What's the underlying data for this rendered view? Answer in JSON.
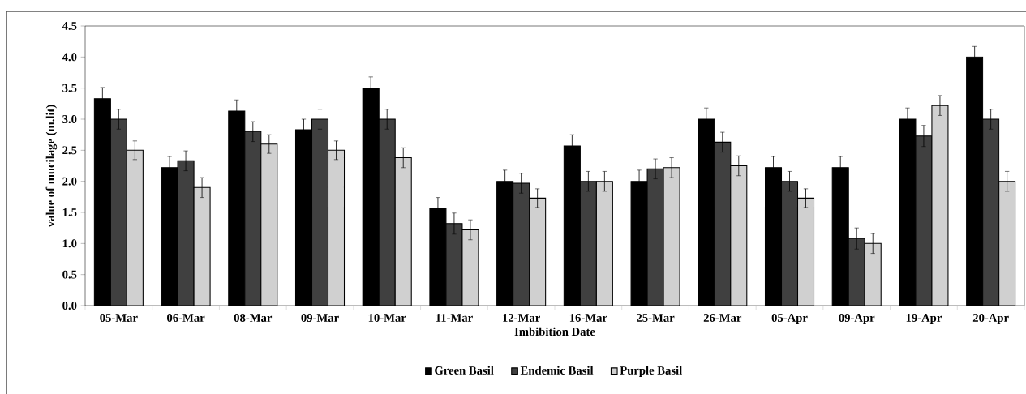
{
  "chart_data": {
    "type": "bar",
    "xlabel": "Imbibition Date",
    "ylabel": "value of mucilage (m.lit)",
    "categories": [
      "05-Mar",
      "06-Mar",
      "08-Mar",
      "09-Mar",
      "10-Mar",
      "11-Mar",
      "12-Mar",
      "16-Mar",
      "25-Mar",
      "26-Mar",
      "05-Apr",
      "09-Apr",
      "19-Apr",
      "20-Apr"
    ],
    "series": [
      {
        "name": "Green Basil",
        "color": "#000000",
        "values": [
          3.33,
          2.22,
          3.13,
          2.83,
          3.5,
          1.57,
          2.0,
          2.57,
          2.0,
          3.0,
          2.22,
          2.22,
          3.0,
          4.0
        ],
        "errors": [
          0.18,
          0.18,
          0.18,
          0.17,
          0.18,
          0.17,
          0.18,
          0.18,
          0.18,
          0.18,
          0.18,
          0.18,
          0.18,
          0.17
        ]
      },
      {
        "name": "Endemic Basil",
        "color": "#404040",
        "values": [
          3.0,
          2.33,
          2.8,
          3.0,
          3.0,
          1.32,
          1.97,
          2.0,
          2.2,
          2.63,
          2.0,
          1.08,
          2.73,
          3.0
        ],
        "errors": [
          0.16,
          0.16,
          0.16,
          0.16,
          0.16,
          0.17,
          0.16,
          0.16,
          0.16,
          0.16,
          0.16,
          0.17,
          0.17,
          0.16
        ]
      },
      {
        "name": "Purple Basil",
        "color": "#d0d0d0",
        "values": [
          2.5,
          1.9,
          2.6,
          2.5,
          2.38,
          1.22,
          1.73,
          2.0,
          2.22,
          2.25,
          1.73,
          1.0,
          3.22,
          2.0
        ],
        "errors": [
          0.15,
          0.16,
          0.15,
          0.15,
          0.16,
          0.16,
          0.15,
          0.16,
          0.16,
          0.16,
          0.15,
          0.16,
          0.16,
          0.16
        ]
      }
    ],
    "ylim": [
      0,
      4.5
    ],
    "yticks": [
      {
        "value": 0,
        "label": "0.0"
      },
      {
        "value": 0.5,
        "label": "0.5"
      },
      {
        "value": 1,
        "label": "1.0"
      },
      {
        "value": 1.5,
        "label": "1.5"
      },
      {
        "value": 2,
        "label": "2.0"
      },
      {
        "value": 2.5,
        "label": "2.5"
      },
      {
        "value": 3,
        "label": "3.0"
      },
      {
        "value": 3.5,
        "label": "3.5"
      },
      {
        "value": 4,
        "label": "4.0"
      },
      {
        "value": 4.5,
        "label": "4.5"
      }
    ],
    "grid": false,
    "legend": "bottom"
  }
}
